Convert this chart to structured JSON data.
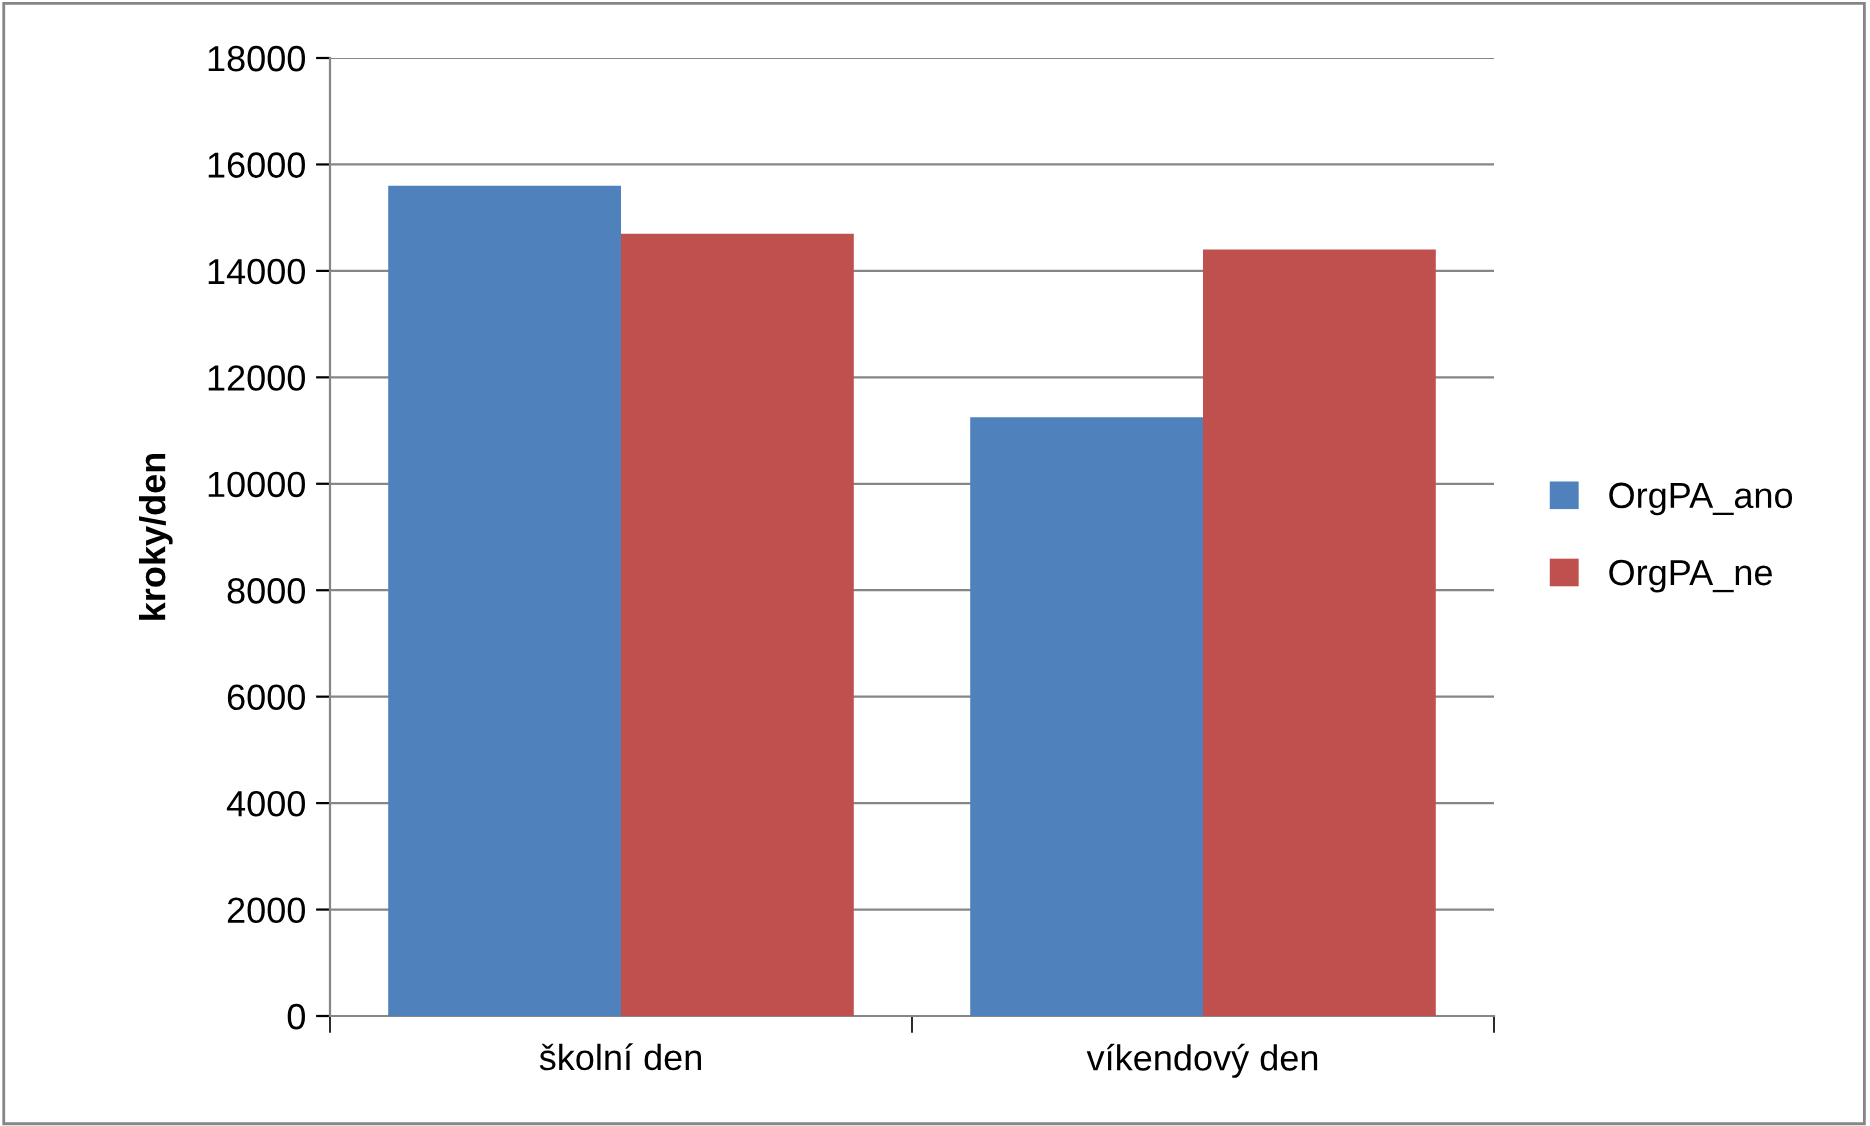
{
  "chart_data": {
    "type": "bar",
    "ylabel": "kroky/den",
    "categories": [
      "školní den",
      "víkendový den"
    ],
    "series": [
      {
        "name": "OrgPA_ano",
        "color": "#4f81bd",
        "values": [
          15600,
          11250
        ]
      },
      {
        "name": "OrgPA_ne",
        "color": "#c0504d",
        "values": [
          14700,
          14400
        ]
      }
    ],
    "ylim": [
      0,
      18000
    ],
    "yticks": [
      0,
      2000,
      4000,
      6000,
      8000,
      10000,
      12000,
      14000,
      16000,
      18000
    ],
    "grid": "y",
    "legend": "right"
  }
}
